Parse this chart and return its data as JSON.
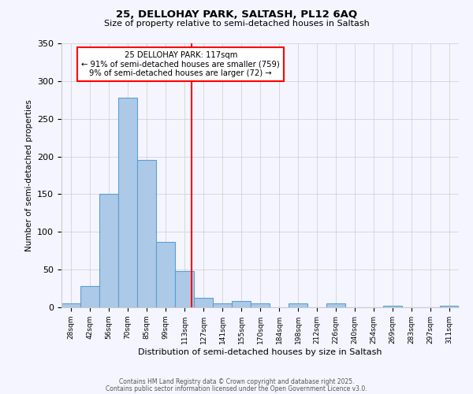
{
  "title": "25, DELLOHAY PARK, SALTASH, PL12 6AQ",
  "subtitle": "Size of property relative to semi-detached houses in Saltash",
  "xlabel": "Distribution of semi-detached houses by size in Saltash",
  "ylabel": "Number of semi-detached properties",
  "bin_edges": [
    21,
    35,
    49,
    63,
    77,
    91,
    105,
    119,
    133,
    147,
    161,
    175,
    189,
    203,
    217,
    231,
    245,
    259,
    273,
    287,
    301,
    315
  ],
  "bin_labels": [
    "28sqm",
    "42sqm",
    "56sqm",
    "70sqm",
    "85sqm",
    "99sqm",
    "113sqm",
    "127sqm",
    "141sqm",
    "155sqm",
    "170sqm",
    "184sqm",
    "198sqm",
    "212sqm",
    "226sqm",
    "240sqm",
    "254sqm",
    "269sqm",
    "283sqm",
    "297sqm",
    "311sqm"
  ],
  "counts": [
    5,
    28,
    150,
    278,
    195,
    87,
    48,
    13,
    5,
    8,
    5,
    0,
    5,
    0,
    5,
    0,
    0,
    2,
    0,
    0,
    2
  ],
  "bar_color": "#adc9e8",
  "bar_edge_color": "#5a9fd4",
  "vline_x": 117,
  "vline_color": "red",
  "annotation_title": "25 DELLOHAY PARK: 117sqm",
  "annotation_line1": "← 91% of semi-detached houses are smaller (759)",
  "annotation_line2": "9% of semi-detached houses are larger (72) →",
  "box_color": "red",
  "ylim": [
    0,
    350
  ],
  "footer1": "Contains HM Land Registry data © Crown copyright and database right 2025.",
  "footer2": "Contains public sector information licensed under the Open Government Licence v3.0.",
  "bg_color": "#f5f5ff",
  "grid_color": "#cccccc"
}
